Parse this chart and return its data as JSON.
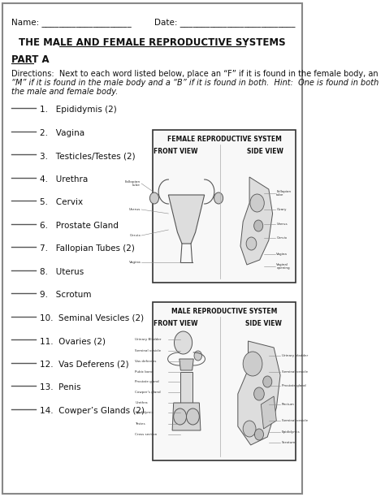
{
  "title": "THE MALE AND FEMALE REPRODUCTIVE SYSTEMS",
  "name_label": "Name: _____________________",
  "date_label": "Date: ___________________________",
  "part_a": "PART A",
  "dir_line1": "Directions:  Next to each word listed below, place an “F” if it is found in the female body, an",
  "dir_line2": "“M” if it is found in the male body and a “B” if it is found in both.  Hint:  One is found in both",
  "dir_line3": "the male and female body.",
  "items": [
    "1.   Epididymis (2)",
    "2.   Vagina",
    "3.   Testicles/Testes (2)",
    "4.   Urethra",
    "5.   Cervix",
    "6.   Prostate Gland",
    "7.   Fallopian Tubes (2)",
    "8.   Uterus",
    "9.   Scrotum",
    "10.  Seminal Vesicles (2)",
    "11.  Ovaries (2)",
    "12.  Vas Deferens (2)",
    "13.  Penis",
    "14.  Cowper’s Glands (2)"
  ],
  "female_box_title": "FEMALE REPRODUCTIVE SYSTEM",
  "female_front_view": "FRONT VIEW",
  "female_side_view": "SIDE VIEW",
  "male_box_title": "MALE REPRODUCTIVE SYSTEM",
  "male_front_view": "FRONT VIEW",
  "male_side_view": "SIDE VIEW",
  "bg_color": "#ffffff",
  "border_color": "#888888",
  "text_color": "#111111",
  "line_color": "#555555"
}
